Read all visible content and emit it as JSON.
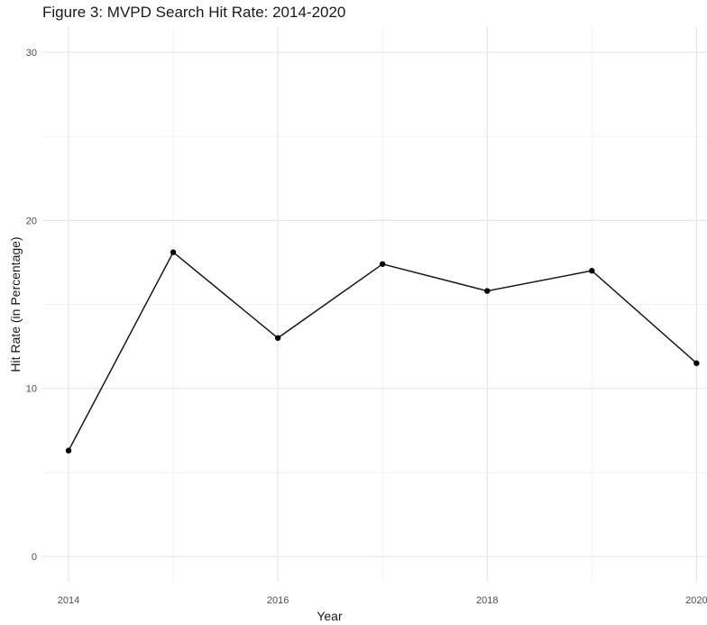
{
  "chart_data": {
    "type": "line",
    "title": "Figure 3: MVPD Search Hit Rate: 2014-2020",
    "xlabel": "Year",
    "ylabel": "Hit Rate (in Percentage)",
    "x": [
      2014,
      2015,
      2016,
      2017,
      2018,
      2019,
      2020
    ],
    "series": [
      {
        "values": [
          6.3,
          18.1,
          13.0,
          17.4,
          15.8,
          17.0,
          11.5
        ]
      }
    ],
    "xlim": [
      2013.75,
      2020.1
    ],
    "ylim": [
      -1.5,
      31.5
    ],
    "x_ticks": [
      2014,
      2016,
      2018,
      2020
    ],
    "x_tick_labels": [
      "2014",
      "2016",
      "2018",
      "2020"
    ],
    "x_minor_ticks": [
      2015,
      2017,
      2019
    ],
    "y_ticks": [
      0,
      10,
      20,
      30
    ],
    "y_tick_labels": [
      "0",
      "10",
      "20",
      "30"
    ],
    "y_minor_ticks": [
      5,
      15,
      25
    ],
    "grid": true,
    "colors": {
      "line": "#1a1a1a",
      "point": "#000000",
      "grid_major": "#e6e6e6",
      "grid_minor": "#f2f2f2"
    }
  }
}
